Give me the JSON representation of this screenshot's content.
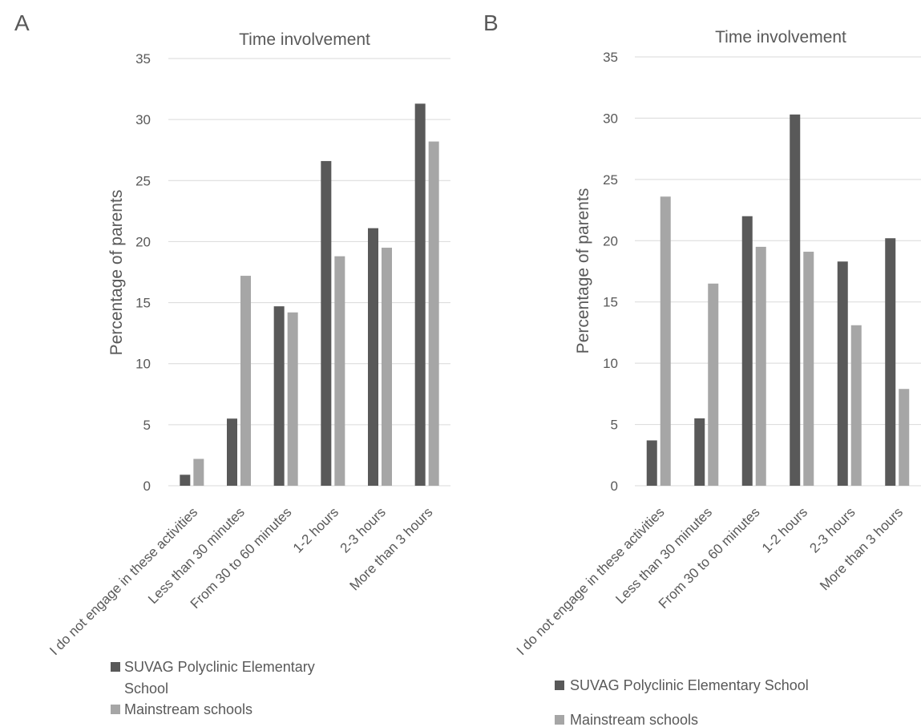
{
  "chart_data": [
    {
      "panel": "A",
      "type": "bar",
      "title": "Time involvement",
      "ylabel": "Percentage of parents",
      "xlabel": "",
      "ylim": [
        0,
        35
      ],
      "yticks": [
        0,
        5,
        10,
        15,
        20,
        25,
        30,
        35
      ],
      "grid": true,
      "legend_position": "bottom",
      "categories": [
        "I do not engage in these activities",
        "Less than 30 minutes",
        "From 30 to 60 minutes",
        "1-2 hours",
        "2-3 hours",
        "More than 3 hours"
      ],
      "series": [
        {
          "name": "SUVAG Polyclinic Elementary School",
          "legend_lines": [
            "SUVAG Polyclinic Elementary",
            "School"
          ],
          "color": "#595959",
          "values": [
            0.9,
            5.5,
            14.7,
            26.6,
            21.1,
            31.3
          ]
        },
        {
          "name": "Mainstream schools",
          "legend_lines": [
            "Mainstream schools"
          ],
          "color": "#a6a6a6",
          "values": [
            2.2,
            17.2,
            14.2,
            18.8,
            19.5,
            28.2
          ]
        }
      ]
    },
    {
      "panel": "B",
      "type": "bar",
      "title": "Time involvement",
      "ylabel": "Percentage of parents",
      "xlabel": "",
      "ylim": [
        0,
        35
      ],
      "yticks": [
        0,
        5,
        10,
        15,
        20,
        25,
        30,
        35
      ],
      "grid": true,
      "legend_position": "bottom",
      "categories": [
        "I do not engage in these activities",
        "Less than 30 minutes",
        "From 30 to 60 minutes",
        "1-2 hours",
        "2-3 hours",
        "More than 3 hours"
      ],
      "series": [
        {
          "name": "SUVAG Polyclinic Elementary School",
          "legend_lines": [
            "SUVAG Polyclinic Elementary School"
          ],
          "color": "#595959",
          "values": [
            3.7,
            5.5,
            22.0,
            30.3,
            18.3,
            20.2
          ]
        },
        {
          "name": "Mainstream schools",
          "legend_lines": [
            "Mainstream schools"
          ],
          "color": "#a6a6a6",
          "values": [
            23.6,
            16.5,
            19.5,
            19.1,
            13.1,
            7.9
          ]
        }
      ]
    }
  ]
}
